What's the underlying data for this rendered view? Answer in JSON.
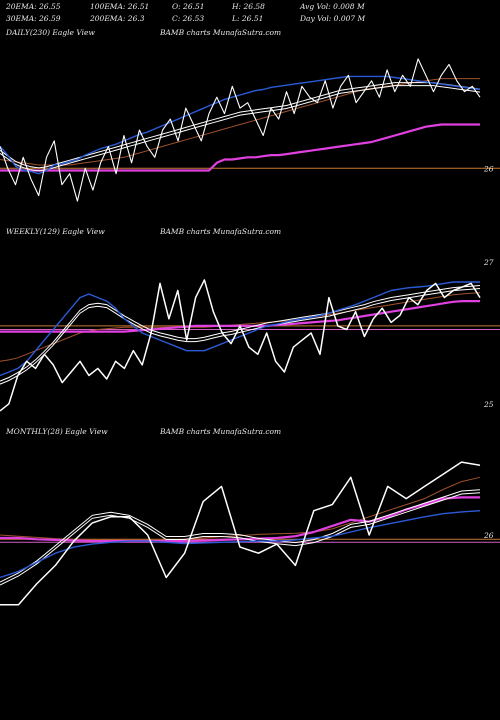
{
  "header": {
    "ema20": "20EMA: 26.55",
    "ema100": "100EMA: 26.51",
    "open": "O: 26.51",
    "high": "H: 26.58",
    "avgvol": "Avg Vol: 0.008  M",
    "ema30": "30EMA: 26.59",
    "ema200": "200EMA: 26.3",
    "close": "C: 26.53",
    "low": "L: 26.51",
    "dayvol": "Day Vol: 0.007 M"
  },
  "colors": {
    "background": "#000000",
    "price": "#ffffff",
    "ema_blue": "#2a5bd7",
    "ema_pink": "#e040e0",
    "ema_brown": "#a0522d",
    "guide_orange": "#c87a30",
    "guide_pink": "#d060c0"
  },
  "chart_data": [
    {
      "type": "line",
      "label": "DAILY(230) Eagle  View",
      "watermark": "BAMB charts MunafaSutra.com",
      "yticks": [
        {
          "value": 26,
          "label": "26"
        }
      ],
      "ylim": [
        25.6,
        27.1
      ],
      "guides": [
        {
          "value": 26,
          "color": "orange"
        }
      ],
      "series": [
        {
          "key": "price",
          "values": [
            26.2,
            26.0,
            25.85,
            26.1,
            25.9,
            25.75,
            26.1,
            26.25,
            25.85,
            25.95,
            25.7,
            26.0,
            25.8,
            26.05,
            26.2,
            25.95,
            26.3,
            26.05,
            26.35,
            26.2,
            26.1,
            26.35,
            26.45,
            26.25,
            26.55,
            26.4,
            26.25,
            26.5,
            26.65,
            26.5,
            26.75,
            26.55,
            26.6,
            26.45,
            26.3,
            26.55,
            26.45,
            26.7,
            26.5,
            26.75,
            26.65,
            26.6,
            26.8,
            26.55,
            26.75,
            26.85,
            26.6,
            26.7,
            26.8,
            26.65,
            26.9,
            26.7,
            26.85,
            26.75,
            27.0,
            26.85,
            26.7,
            26.85,
            26.95,
            26.8,
            26.7,
            26.75,
            26.65
          ]
        },
        {
          "key": "ema_blue",
          "values": [
            26.2,
            26.12,
            26.02,
            25.98,
            25.97,
            25.95,
            25.98,
            26.03,
            26.04,
            26.06,
            26.08,
            26.12,
            26.15,
            26.18,
            26.2,
            26.22,
            26.25,
            26.28,
            26.31,
            26.33,
            26.36,
            26.39,
            26.42,
            26.45,
            26.48,
            26.51,
            26.54,
            26.57,
            26.6,
            26.63,
            26.65,
            26.67,
            26.69,
            26.71,
            26.72,
            26.74,
            26.75,
            26.76,
            26.77,
            26.78,
            26.79,
            26.8,
            26.81,
            26.82,
            26.83,
            26.84,
            26.84,
            26.84,
            26.84,
            26.84,
            26.84,
            26.83,
            26.82,
            26.81,
            26.8,
            26.79,
            26.78,
            26.77,
            26.76,
            26.75,
            26.74,
            26.73,
            26.72
          ]
        },
        {
          "key": "ema_white",
          "values": [
            26.15,
            26.1,
            26.05,
            26.02,
            26.0,
            25.99,
            26.0,
            26.02,
            26.04,
            26.06,
            26.08,
            26.1,
            26.12,
            26.14,
            26.16,
            26.18,
            26.2,
            26.22,
            26.24,
            26.26,
            26.28,
            26.3,
            26.32,
            26.34,
            26.36,
            26.38,
            26.4,
            26.42,
            26.44,
            26.46,
            26.48,
            26.5,
            26.51,
            26.52,
            26.53,
            26.54,
            26.55,
            26.56,
            26.58,
            26.6,
            26.62,
            26.64,
            26.66,
            26.68,
            26.7,
            26.71,
            26.72,
            26.73,
            26.74,
            26.75,
            26.76,
            26.77,
            26.77,
            26.77,
            26.77,
            26.77,
            26.77,
            26.76,
            26.75,
            26.74,
            26.73,
            26.72,
            26.71
          ]
        },
        {
          "key": "ema_brown",
          "values": [
            26.08,
            26.07,
            26.06,
            26.05,
            26.04,
            26.03,
            26.03,
            26.03,
            26.03,
            26.03,
            26.04,
            26.05,
            26.06,
            26.07,
            26.08,
            26.09,
            26.1,
            26.12,
            26.14,
            26.16,
            26.18,
            26.2,
            26.22,
            26.24,
            26.26,
            26.28,
            26.3,
            26.32,
            26.34,
            26.36,
            26.38,
            26.4,
            26.42,
            26.44,
            26.46,
            26.48,
            26.5,
            26.52,
            26.54,
            26.56,
            26.58,
            26.6,
            26.62,
            26.64,
            26.66,
            26.68,
            26.7,
            26.72,
            26.73,
            26.74,
            26.75,
            26.76,
            26.77,
            26.78,
            26.79,
            26.8,
            26.81,
            26.82,
            26.82,
            26.82,
            26.82,
            26.82,
            26.82
          ]
        },
        {
          "key": "ema_pink",
          "values": [
            25.98,
            25.98,
            25.98,
            25.98,
            25.98,
            25.98,
            25.98,
            25.98,
            25.98,
            25.98,
            25.98,
            25.98,
            25.98,
            25.98,
            25.98,
            25.98,
            25.98,
            25.98,
            25.98,
            25.98,
            25.98,
            25.98,
            25.98,
            25.98,
            25.98,
            25.98,
            25.98,
            25.98,
            26.05,
            26.08,
            26.08,
            26.09,
            26.1,
            26.1,
            26.11,
            26.12,
            26.12,
            26.13,
            26.14,
            26.15,
            26.16,
            26.17,
            26.18,
            26.19,
            26.2,
            26.21,
            26.22,
            26.23,
            26.24,
            26.26,
            26.28,
            26.3,
            26.32,
            26.34,
            26.36,
            26.38,
            26.39,
            26.4,
            26.4,
            26.4,
            26.4,
            26.4,
            26.4
          ]
        }
      ]
    },
    {
      "type": "line",
      "label": "WEEKLY(129) Eagle  View",
      "watermark": "BAMB charts MunafaSutra.com",
      "yticks": [
        {
          "value": 27,
          "label": "27"
        },
        {
          "value": 25,
          "label": "25"
        }
      ],
      "ylim": [
        24.8,
        27.2
      ],
      "guides": [
        {
          "value": 26.1,
          "color": "orange"
        },
        {
          "value": 26.05,
          "color": "pink"
        }
      ],
      "series": [
        {
          "key": "price",
          "values": [
            24.9,
            25.0,
            25.4,
            25.6,
            25.5,
            25.7,
            25.55,
            25.3,
            25.45,
            25.6,
            25.4,
            25.5,
            25.35,
            25.6,
            25.5,
            25.75,
            25.55,
            26.0,
            26.7,
            26.2,
            26.6,
            25.9,
            26.5,
            26.75,
            26.3,
            26.0,
            25.85,
            26.1,
            25.8,
            25.7,
            26.0,
            25.6,
            25.45,
            25.8,
            25.9,
            26.0,
            25.7,
            26.5,
            26.1,
            26.05,
            26.3,
            25.95,
            26.2,
            26.35,
            26.15,
            26.25,
            26.5,
            26.4,
            26.6,
            26.7,
            26.5,
            26.6,
            26.65,
            26.7,
            26.5
          ]
        },
        {
          "key": "ema_blue",
          "values": [
            25.4,
            25.45,
            25.5,
            25.6,
            25.75,
            25.9,
            26.05,
            26.2,
            26.35,
            26.5,
            26.55,
            26.5,
            26.45,
            26.35,
            26.2,
            26.1,
            26.0,
            25.95,
            25.9,
            25.85,
            25.8,
            25.75,
            25.75,
            25.75,
            25.8,
            25.85,
            25.9,
            25.95,
            26.0,
            26.05,
            26.1,
            26.12,
            26.15,
            26.18,
            26.2,
            26.22,
            26.25,
            26.28,
            26.32,
            26.36,
            26.4,
            26.45,
            26.5,
            26.55,
            26.6,
            26.62,
            26.64,
            26.65,
            26.66,
            26.68,
            26.7,
            26.72,
            26.72,
            26.72,
            26.72
          ]
        },
        {
          "key": "ema_white",
          "values": [
            25.3,
            25.35,
            25.42,
            25.5,
            25.6,
            25.72,
            25.85,
            26.0,
            26.15,
            26.3,
            26.38,
            26.4,
            26.38,
            26.3,
            26.22,
            26.15,
            26.08,
            26.02,
            25.98,
            25.95,
            25.92,
            25.9,
            25.9,
            25.92,
            25.95,
            25.98,
            26.0,
            26.03,
            26.06,
            26.09,
            26.12,
            26.14,
            26.16,
            26.18,
            26.2,
            26.22,
            26.24,
            26.26,
            26.29,
            26.32,
            26.35,
            26.38,
            26.42,
            26.45,
            26.48,
            26.5,
            26.52,
            26.54,
            26.56,
            26.58,
            26.6,
            26.62,
            26.63,
            26.64,
            26.65
          ]
        },
        {
          "key": "ema_brown",
          "values": [
            25.6,
            25.62,
            25.65,
            25.7,
            25.75,
            25.8,
            25.85,
            25.9,
            25.95,
            26.0,
            26.03,
            26.05,
            26.06,
            26.07,
            26.08,
            26.08,
            26.08,
            26.08,
            26.08,
            26.08,
            26.08,
            26.08,
            26.08,
            26.08,
            26.09,
            26.1,
            26.11,
            26.12,
            26.13,
            26.14,
            26.15,
            26.16,
            26.17,
            26.18,
            26.2,
            26.22,
            26.24,
            26.26,
            26.28,
            26.3,
            26.32,
            26.34,
            26.36,
            26.38,
            26.4,
            26.42,
            26.44,
            26.46,
            26.48,
            26.5,
            26.52,
            26.54,
            26.55,
            26.56,
            26.57
          ]
        },
        {
          "key": "ema_pink",
          "values": [
            26.02,
            26.02,
            26.02,
            26.02,
            26.02,
            26.02,
            26.02,
            26.02,
            26.02,
            26.02,
            26.02,
            26.02,
            26.02,
            26.02,
            26.02,
            26.03,
            26.04,
            26.05,
            26.06,
            26.07,
            26.08,
            26.09,
            26.1,
            26.1,
            26.1,
            26.1,
            26.1,
            26.1,
            26.1,
            26.1,
            26.1,
            26.11,
            26.12,
            26.13,
            26.14,
            26.15,
            26.16,
            26.17,
            26.18,
            26.2,
            26.22,
            26.24,
            26.26,
            26.28,
            26.3,
            26.32,
            26.34,
            26.36,
            26.38,
            26.4,
            26.42,
            26.44,
            26.45,
            26.45,
            26.45
          ]
        }
      ]
    },
    {
      "type": "line",
      "label": "MONTHLY(28) Eagle  View",
      "watermark": "BAMB charts MunafaSutra.com",
      "yticks": [
        {
          "value": 26,
          "label": "26"
        }
      ],
      "ylim": [
        24.6,
        27.4
      ],
      "guides": [
        {
          "value": 25.93,
          "color": "orange"
        },
        {
          "value": 25.88,
          "color": "pink"
        }
      ],
      "series": [
        {
          "key": "price",
          "values": [
            24.85,
            24.85,
            25.2,
            25.5,
            25.9,
            26.2,
            26.3,
            26.3,
            26.0,
            25.3,
            25.7,
            26.55,
            26.8,
            25.8,
            25.7,
            25.85,
            25.5,
            26.4,
            26.5,
            26.95,
            26.0,
            26.8,
            26.6,
            26.8,
            27.0,
            27.2,
            27.15
          ]
        },
        {
          "key": "ema_blue",
          "values": [
            25.3,
            25.4,
            25.55,
            25.7,
            25.8,
            25.85,
            25.88,
            25.9,
            25.9,
            25.88,
            25.86,
            25.87,
            25.88,
            25.89,
            25.9,
            25.9,
            25.92,
            25.95,
            25.98,
            26.05,
            26.12,
            26.18,
            26.24,
            26.3,
            26.35,
            26.38,
            26.4
          ]
        },
        {
          "key": "ema_white",
          "values": [
            25.2,
            25.35,
            25.55,
            25.8,
            26.05,
            26.3,
            26.35,
            26.3,
            26.15,
            25.95,
            25.95,
            26.0,
            26.0,
            25.98,
            25.92,
            25.88,
            25.85,
            25.9,
            26.0,
            26.15,
            26.2,
            26.3,
            26.4,
            26.5,
            26.6,
            26.7,
            26.72
          ]
        },
        {
          "key": "ema_brown",
          "values": [
            26.0,
            25.98,
            25.96,
            25.94,
            25.93,
            25.92,
            25.92,
            25.92,
            25.92,
            25.92,
            25.93,
            25.95,
            25.97,
            25.99,
            26.01,
            26.02,
            26.03,
            26.05,
            26.1,
            26.2,
            26.3,
            26.4,
            26.5,
            26.6,
            26.75,
            26.88,
            26.95
          ]
        },
        {
          "key": "ema_pink",
          "values": [
            25.95,
            25.95,
            25.93,
            25.92,
            25.91,
            25.9,
            25.9,
            25.9,
            25.9,
            25.9,
            25.9,
            25.91,
            25.92,
            25.93,
            25.94,
            25.95,
            25.98,
            26.05,
            26.15,
            26.25,
            26.22,
            26.3,
            26.42,
            26.5,
            26.6,
            26.62,
            26.62
          ]
        }
      ]
    }
  ]
}
